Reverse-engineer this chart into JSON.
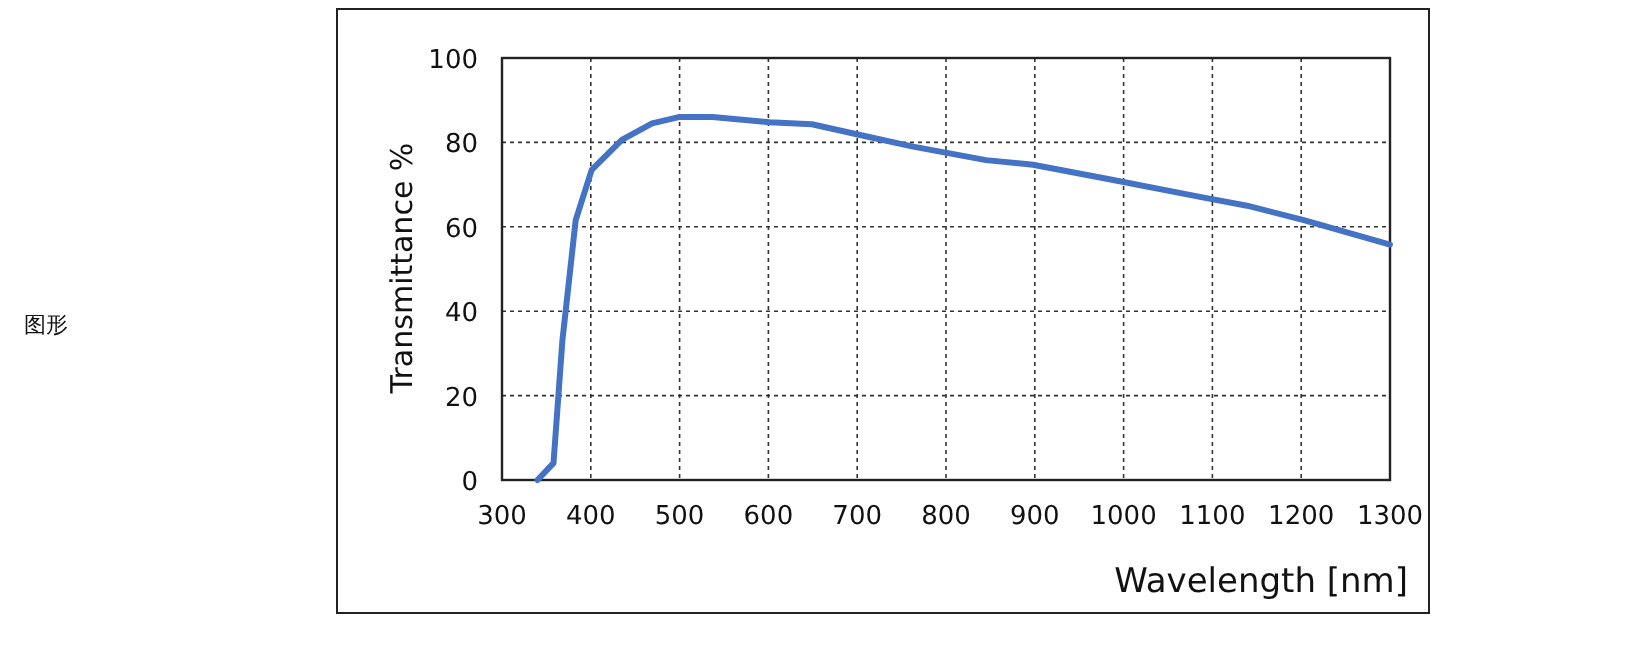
{
  "chart_data": {
    "type": "line",
    "xlabel": "Wavelength [nm]",
    "ylabel": "Transmittance %",
    "annotations": [
      "图形"
    ],
    "xlim": [
      300,
      1300
    ],
    "ylim": [
      0,
      100
    ],
    "xticks": [
      300,
      400,
      500,
      600,
      700,
      800,
      900,
      1000,
      1100,
      1200,
      1300
    ],
    "yticks": [
      0,
      20,
      40,
      60,
      80,
      100
    ],
    "grid": true,
    "marker": "none",
    "line_style": "solid",
    "series": [
      {
        "color": "#4472c4",
        "x": [
          340,
          358,
          368,
          383,
          401,
          435,
          469,
          499,
          537,
          601,
          649,
          702,
          763,
          845,
          898,
          981,
          1086,
          1139,
          1203,
          1300
        ],
        "values": [
          0,
          4,
          33,
          61.6,
          73.5,
          80.6,
          84.5,
          86,
          86,
          84.8,
          84.3,
          81.8,
          79,
          75.8,
          74.7,
          71.4,
          67.1,
          65,
          61.6,
          55.8
        ]
      }
    ]
  }
}
